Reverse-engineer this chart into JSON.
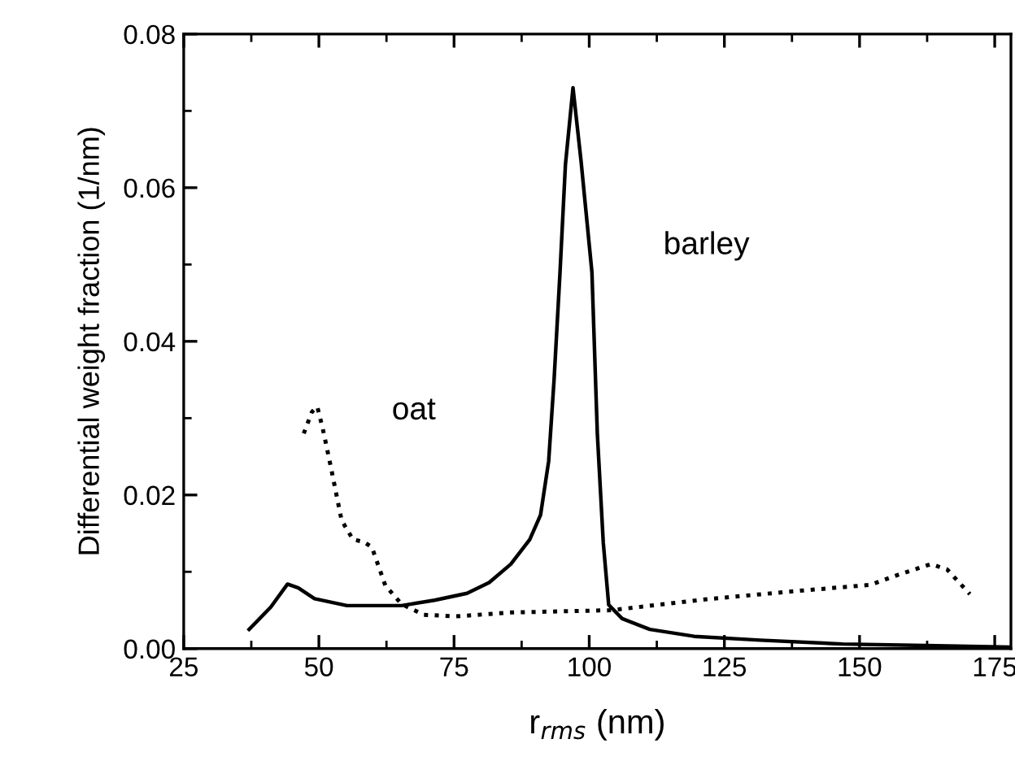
{
  "chart_data": {
    "type": "line",
    "xlabel": "r$_{rms}$ (nm)",
    "ylabel": "Differential weight fraction (1/nm)",
    "xlim": [
      25,
      178
    ],
    "xticks": [
      25,
      50,
      75,
      100,
      125,
      150,
      175
    ],
    "ylim": [
      0,
      0.08
    ],
    "yticks": [
      {
        "value": 0,
        "label": "0.00"
      },
      {
        "value": 0.02,
        "label": "0.02"
      },
      {
        "value": 0.04,
        "label": "0.04"
      },
      {
        "value": 0.06,
        "label": "0.06"
      },
      {
        "value": 0.08,
        "label": "0.08"
      }
    ],
    "grid": false,
    "legend": false,
    "marker": "none",
    "series": [
      {
        "name": "barley",
        "color": "#000000",
        "line_style": "solid",
        "x": [
          37.1,
          41.1,
          44.2,
          46.2,
          49.2,
          55.2,
          65.3,
          71.4,
          77.4,
          81.5,
          85.5,
          89.0,
          91.0,
          92.5,
          93.5,
          94.6,
          95.6,
          97.0,
          98.5,
          100.5,
          101.5,
          102.6,
          103.6,
          106.1,
          111.2,
          119.4,
          131.6,
          146.9,
          162.2,
          178
        ],
        "values": [
          0.0025,
          0.0054,
          0.0084,
          0.0079,
          0.0065,
          0.0056,
          0.0056,
          0.0063,
          0.0072,
          0.0086,
          0.011,
          0.0142,
          0.0174,
          0.0244,
          0.035,
          0.049,
          0.063,
          0.073,
          0.0634,
          0.049,
          0.028,
          0.0138,
          0.0057,
          0.0039,
          0.0025,
          0.0016,
          0.0011,
          0.0006,
          0.0004,
          0.0002
        ]
      },
      {
        "name": "oat",
        "color": "#000000",
        "line_style": "dotted",
        "x": [
          47.2,
          48.7,
          49.7,
          50.7,
          52.2,
          54.2,
          56.3,
          58.3,
          59.8,
          62.3,
          65.3,
          69.4,
          75.4,
          85.5,
          104.1,
          121.4,
          136.7,
          152.0,
          157.1,
          163.2,
          166.2,
          170.4
        ],
        "values": [
          0.028,
          0.0308,
          0.0315,
          0.0287,
          0.0237,
          0.0167,
          0.0142,
          0.0139,
          0.0132,
          0.0082,
          0.0058,
          0.0044,
          0.0042,
          0.0047,
          0.005,
          0.0064,
          0.0074,
          0.0083,
          0.0096,
          0.011,
          0.0103,
          0.0071
        ]
      }
    ]
  }
}
